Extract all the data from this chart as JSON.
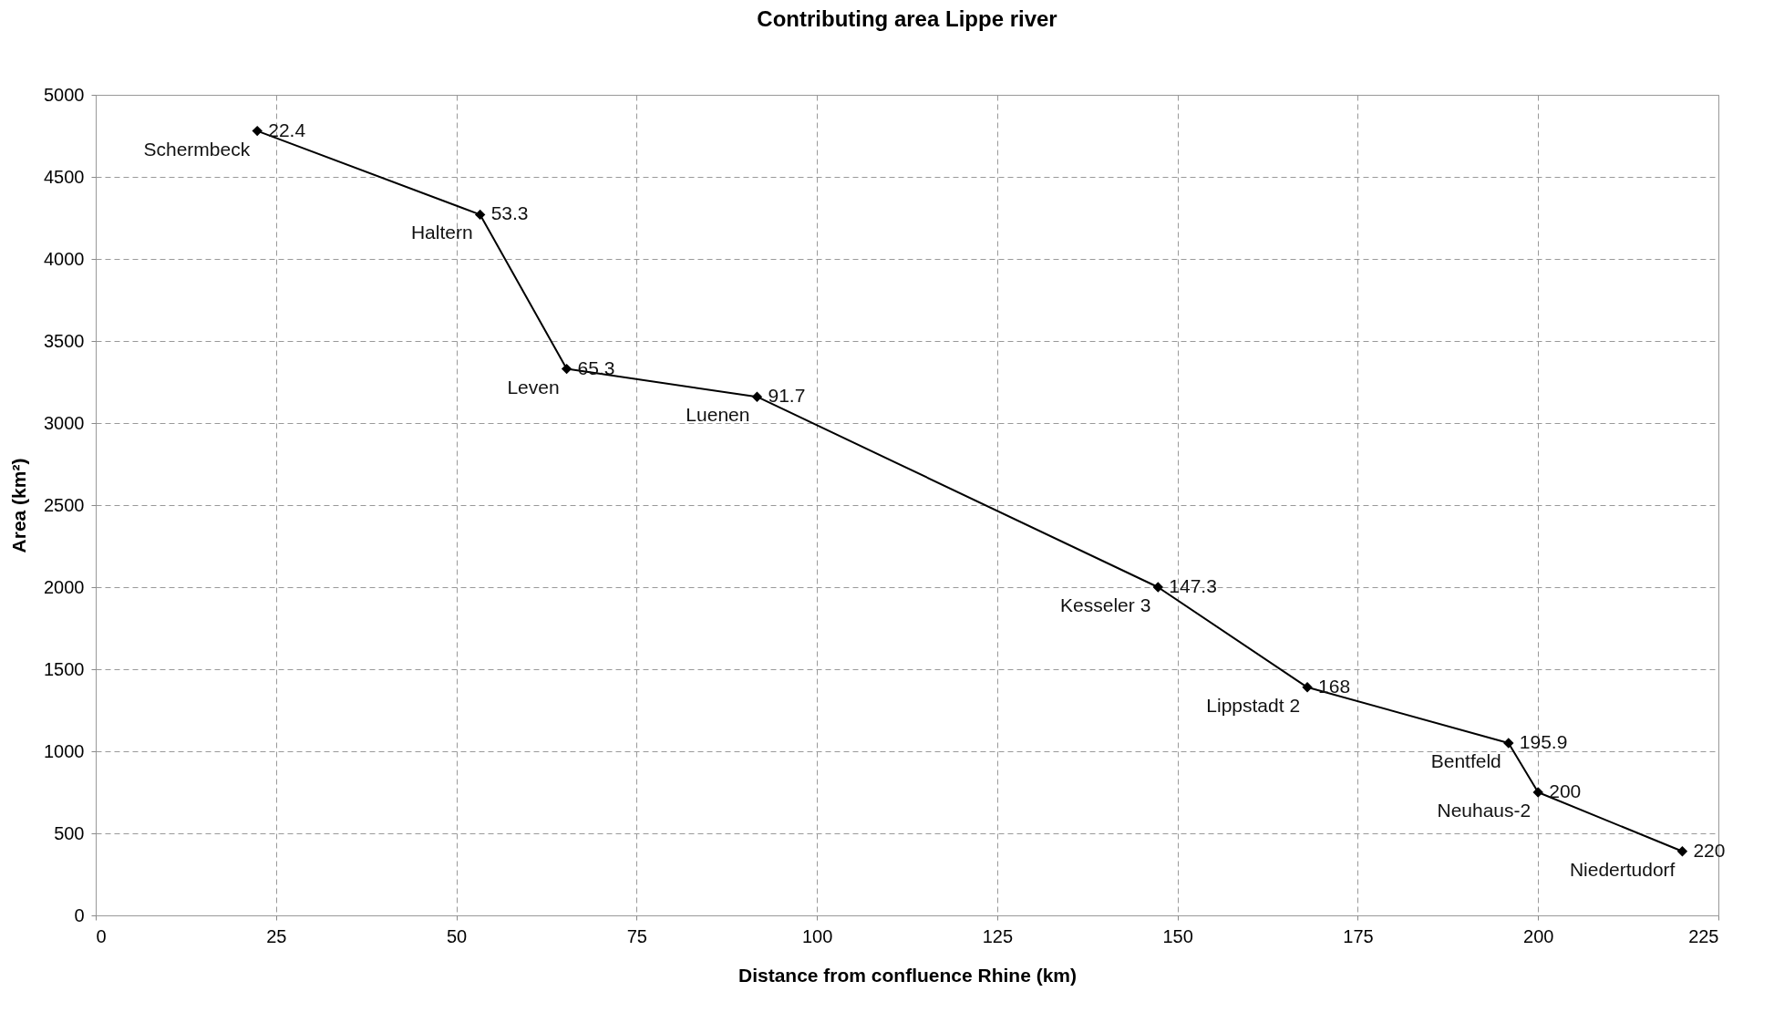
{
  "chart_data": {
    "type": "line",
    "title": "Contributing area Lippe river",
    "xlabel": "Distance from confluence Rhine (km)",
    "ylabel": "Area (km²)",
    "x": [
      22.4,
      53.3,
      65.3,
      91.7,
      147.3,
      168,
      195.9,
      200,
      220
    ],
    "series": [
      {
        "color": "#000000",
        "values": [
          4780,
          4270,
          3330,
          3160,
          2000,
          1390,
          1050,
          750,
          390
        ]
      }
    ],
    "xlim": [
      0,
      225
    ],
    "xticks": [
      0,
      25,
      50,
      75,
      100,
      125,
      150,
      175,
      200,
      225
    ],
    "ylim": [
      0,
      5000
    ],
    "yticks": [
      0,
      500,
      1000,
      1500,
      2000,
      2500,
      3000,
      3500,
      4000,
      4500,
      5000
    ],
    "grid": true,
    "marker": "diamond",
    "line_style": "solid",
    "annotations": [
      {
        "text": "Schermbeck",
        "x": 22.4,
        "y": 4780
      },
      {
        "text": "Haltern",
        "x": 53.3,
        "y": 4270
      },
      {
        "text": "Leven",
        "x": 65.3,
        "y": 3330
      },
      {
        "text": "Luenen",
        "x": 91.7,
        "y": 3160
      },
      {
        "text": "Kesseler 3",
        "x": 147.3,
        "y": 2000
      },
      {
        "text": "Lippstadt 2",
        "x": 168,
        "y": 1390
      },
      {
        "text": "Bentfeld",
        "x": 195.9,
        "y": 1050
      },
      {
        "text": "Neuhaus-2",
        "x": 200,
        "y": 750
      },
      {
        "text": "Niedertudorf",
        "x": 220,
        "y": 390
      },
      {
        "text": "22.4",
        "x": 22.4,
        "y": 4780
      },
      {
        "text": "53.3",
        "x": 53.3,
        "y": 4270
      },
      {
        "text": "65.3",
        "x": 65.3,
        "y": 3330
      },
      {
        "text": "91.7",
        "x": 91.7,
        "y": 3160
      },
      {
        "text": "147.3",
        "x": 147.3,
        "y": 2000
      },
      {
        "text": "168",
        "x": 168,
        "y": 1390
      },
      {
        "text": "195.9",
        "x": 195.9,
        "y": 1050
      },
      {
        "text": "200",
        "x": 200,
        "y": 750
      },
      {
        "text": "220",
        "x": 220,
        "y": 390
      }
    ]
  }
}
